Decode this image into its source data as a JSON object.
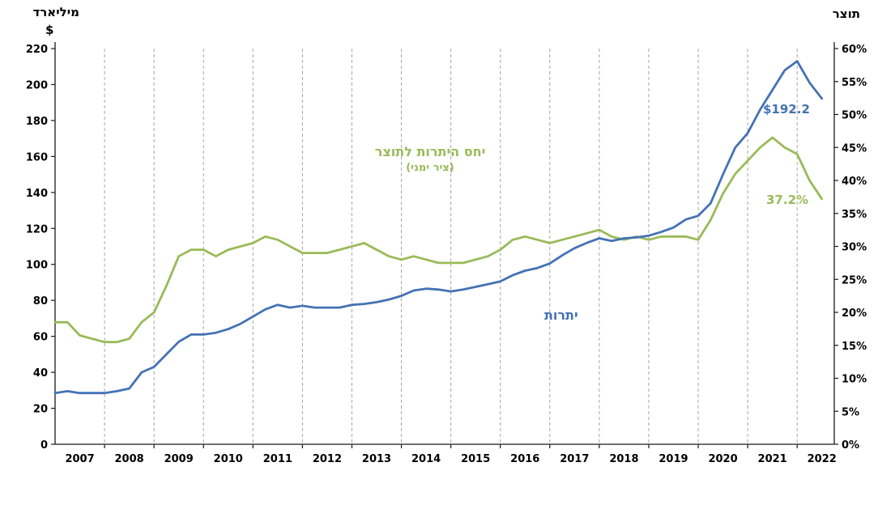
{
  "page": {
    "left_axis_title_line1": "מיליארד",
    "left_axis_title_line2": "$",
    "right_axis_title": "תוצר"
  },
  "chart_data": {
    "type": "line",
    "title": "",
    "x_label": "",
    "x_range": [
      2007,
      2022.75
    ],
    "grid": "vertical-dashed",
    "legend_position": "inline-annotations",
    "x_tick_labels": [
      "2007",
      "2008",
      "2009",
      "2010",
      "2011",
      "2012",
      "2013",
      "2014",
      "2015",
      "2016",
      "2017",
      "2018",
      "2019",
      "2020",
      "2021",
      "2022"
    ],
    "left_axis": {
      "title": "מיליארד $",
      "min": 0,
      "max": 220,
      "step": 20,
      "tick_labels": [
        "0",
        "20",
        "40",
        "60",
        "80",
        "100",
        "120",
        "140",
        "160",
        "180",
        "200",
        "220"
      ]
    },
    "right_axis": {
      "title": "תוצר",
      "min": 0,
      "max": 60,
      "step": 5,
      "tick_labels": [
        "0%",
        "5%",
        "10%",
        "15%",
        "20%",
        "25%",
        "30%",
        "35%",
        "40%",
        "45%",
        "50%",
        "55%",
        "60%"
      ]
    },
    "x": [
      2007,
      2007.25,
      2007.5,
      2007.75,
      2008,
      2008.25,
      2008.5,
      2008.75,
      2009,
      2009.25,
      2009.5,
      2009.75,
      2010,
      2010.25,
      2010.5,
      2010.75,
      2011,
      2011.25,
      2011.5,
      2011.75,
      2012,
      2012.25,
      2012.5,
      2012.75,
      2013,
      2013.25,
      2013.5,
      2013.75,
      2014,
      2014.25,
      2014.5,
      2014.75,
      2015,
      2015.25,
      2015.5,
      2015.75,
      2016,
      2016.25,
      2016.5,
      2016.75,
      2017,
      2017.25,
      2017.5,
      2017.75,
      2018,
      2018.25,
      2018.5,
      2018.75,
      2019,
      2019.25,
      2019.5,
      2019.75,
      2020,
      2020.25,
      2020.5,
      2020.75,
      2021,
      2021.25,
      2021.5,
      2021.75,
      2022,
      2022.25,
      2022.5
    ],
    "series": [
      {
        "name": "יתרות",
        "axis": "left",
        "unit": "מיליארד $",
        "color": "#4472b4",
        "values": [
          28.5,
          29.5,
          28.5,
          28.5,
          28.5,
          29.5,
          31,
          40,
          43,
          50,
          57,
          61,
          61,
          62,
          64,
          67,
          71,
          75,
          77.5,
          76,
          77,
          76,
          76,
          76,
          77.5,
          78,
          79,
          80.5,
          82.5,
          85.5,
          86.5,
          86,
          85,
          86,
          87.5,
          89,
          90.5,
          94,
          96.5,
          98,
          100.5,
          105,
          109,
          112,
          114.5,
          113,
          114.5,
          115,
          116,
          118,
          120.5,
          125,
          127,
          134,
          150,
          165,
          173,
          186,
          197,
          208,
          213,
          201,
          192.2
        ]
      },
      {
        "name": "יחס היתרות לתוצר (ציר ימני)",
        "axis": "right",
        "unit": "%",
        "color": "#9aba58",
        "values": [
          18.5,
          18.5,
          16.5,
          16,
          15.5,
          15.5,
          16,
          18.5,
          20,
          24,
          28.5,
          29.5,
          29.5,
          28.5,
          29.5,
          30,
          30.5,
          31.5,
          31,
          30,
          29,
          29,
          29,
          29.5,
          30,
          30.5,
          29.5,
          28.5,
          28,
          28.5,
          28,
          27.5,
          27.5,
          27.5,
          28,
          28.5,
          29.5,
          31,
          31.5,
          31,
          30.5,
          31,
          31.5,
          32,
          32.5,
          31.5,
          31,
          31.5,
          31,
          31.5,
          31.5,
          31.5,
          31,
          34,
          38,
          41,
          43,
          45,
          46.5,
          45,
          44,
          40,
          37.2
        ]
      }
    ],
    "annotations": {
      "reserves_last_value": "$192.2",
      "ratio_last_value": "37.2%",
      "ratio_label_line1": "יחס היתרות לתוצר",
      "ratio_label_line2": "(ציר ימני)",
      "reserves_label": "יתרות"
    },
    "colors": {
      "reserves_line": "#4472b4",
      "ratio_line": "#9aba58",
      "gridline": "#a6a6a6",
      "axis": "#1a1a1a",
      "tick_text": "#000000"
    }
  }
}
